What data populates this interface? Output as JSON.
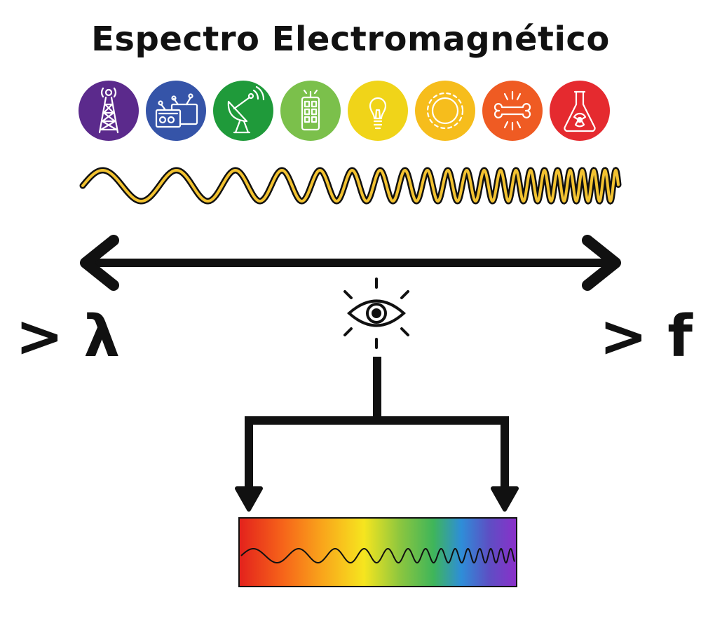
{
  "title": "Espectro Electromagnético",
  "left_label": "> λ",
  "right_label": "> f",
  "icons": [
    {
      "name": "radio-tower-icon",
      "bg": "#5b2a8c"
    },
    {
      "name": "radio-tv-icon",
      "bg": "#3554a8"
    },
    {
      "name": "satellite-dish-icon",
      "bg": "#1f9a3a"
    },
    {
      "name": "phone-icon",
      "bg": "#7bc04b"
    },
    {
      "name": "light-bulb-icon",
      "bg": "#f0d419"
    },
    {
      "name": "sun-icon",
      "bg": "#f6bd1c"
    },
    {
      "name": "bone-xray-icon",
      "bg": "#ef5b23"
    },
    {
      "name": "radioactive-flask-icon",
      "bg": "#e52a2f"
    }
  ],
  "colors": {
    "text": "#111111",
    "wave_fill": "#f2c230",
    "axis": "#111111"
  }
}
